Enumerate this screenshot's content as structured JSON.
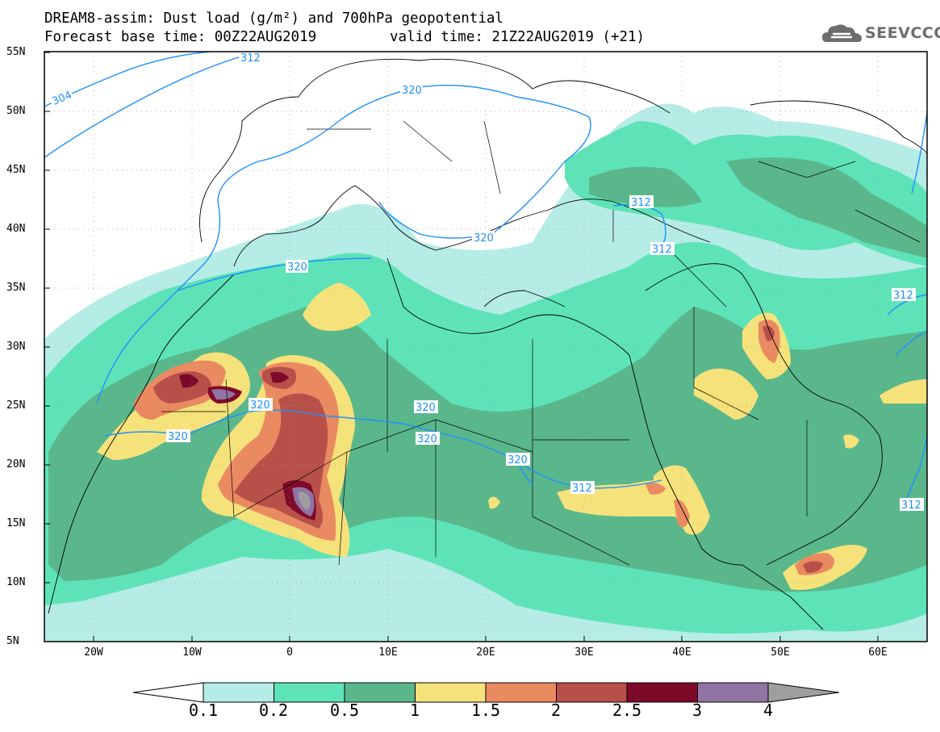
{
  "header": {
    "title": "DREAM8-assim: Dust load (g/m²) and 700hPa geopotential",
    "base_time": "Forecast base time: 00Z22AUG2019",
    "valid_time": "valid time: 21Z22AUG2019 (+21)"
  },
  "logo": {
    "text": "SEEVCCC",
    "icon": "cloud-icon"
  },
  "axes": {
    "lat_labels": [
      "55N",
      "50N",
      "45N",
      "40N",
      "35N",
      "30N",
      "25N",
      "20N",
      "15N",
      "10N",
      "5N"
    ],
    "lon_labels": [
      "20W",
      "10W",
      "0",
      "10E",
      "20E",
      "30E",
      "40E",
      "50E",
      "60E"
    ]
  },
  "contour_labels": [
    "304",
    "312",
    "320",
    "320",
    "320",
    "320",
    "320",
    "320",
    "320",
    "320",
    "312",
    "312",
    "312",
    "312",
    "312"
  ],
  "colorbar": {
    "ticks": [
      "0.1",
      "0.2",
      "0.5",
      "1",
      "1.5",
      "2",
      "2.5",
      "3",
      "4"
    ],
    "colors": [
      "#ffffff",
      "#b6ece6",
      "#5ee3b8",
      "#5ab78c",
      "#f5e27a",
      "#ea8a61",
      "#b8504a",
      "#7e0a29",
      "#8f74a4",
      "#9e9e9e"
    ]
  },
  "legend_colors": {
    "geopotential_line": "#1e90ff",
    "coastline": "#000000"
  }
}
